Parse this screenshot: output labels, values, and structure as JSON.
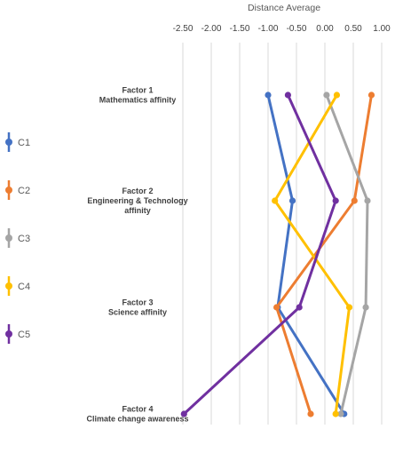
{
  "chart_data": {
    "type": "line",
    "orientation": "vertical-profile",
    "xlabel": "Distance Average",
    "xlim": [
      -2.5,
      1.0
    ],
    "xticks": [
      "-2.50",
      "-2.00",
      "-1.50",
      "-1.00",
      "-0.50",
      "0.00",
      "0.50",
      "1.00"
    ],
    "xtick_values": [
      -2.5,
      -2.0,
      -1.5,
      -1.0,
      -0.5,
      0.0,
      0.5,
      1.0
    ],
    "categories": [
      [
        "Factor 1",
        "Mathematics affinity"
      ],
      [
        "Factor 2",
        "Engineering & Technology",
        "affinity"
      ],
      [
        "Factor 3",
        "Science affinity"
      ],
      [
        "Factor 4",
        "Climate change awareness"
      ]
    ],
    "grid": "vertical",
    "legend_position": "left",
    "series": [
      {
        "name": "C1",
        "color": "#4472C4",
        "values": [
          -1.0,
          -0.57,
          -0.83,
          0.34
        ]
      },
      {
        "name": "C2",
        "color": "#ED7D31",
        "values": [
          0.82,
          0.52,
          -0.85,
          -0.25
        ]
      },
      {
        "name": "C3",
        "color": "#A5A5A5",
        "values": [
          0.03,
          0.75,
          0.72,
          0.28
        ]
      },
      {
        "name": "C4",
        "color": "#FFC000",
        "values": [
          0.21,
          -0.88,
          0.43,
          0.19
        ]
      },
      {
        "name": "C5",
        "color": "#7030A0",
        "values": [
          -0.65,
          0.19,
          -0.45,
          -2.48
        ]
      }
    ]
  }
}
